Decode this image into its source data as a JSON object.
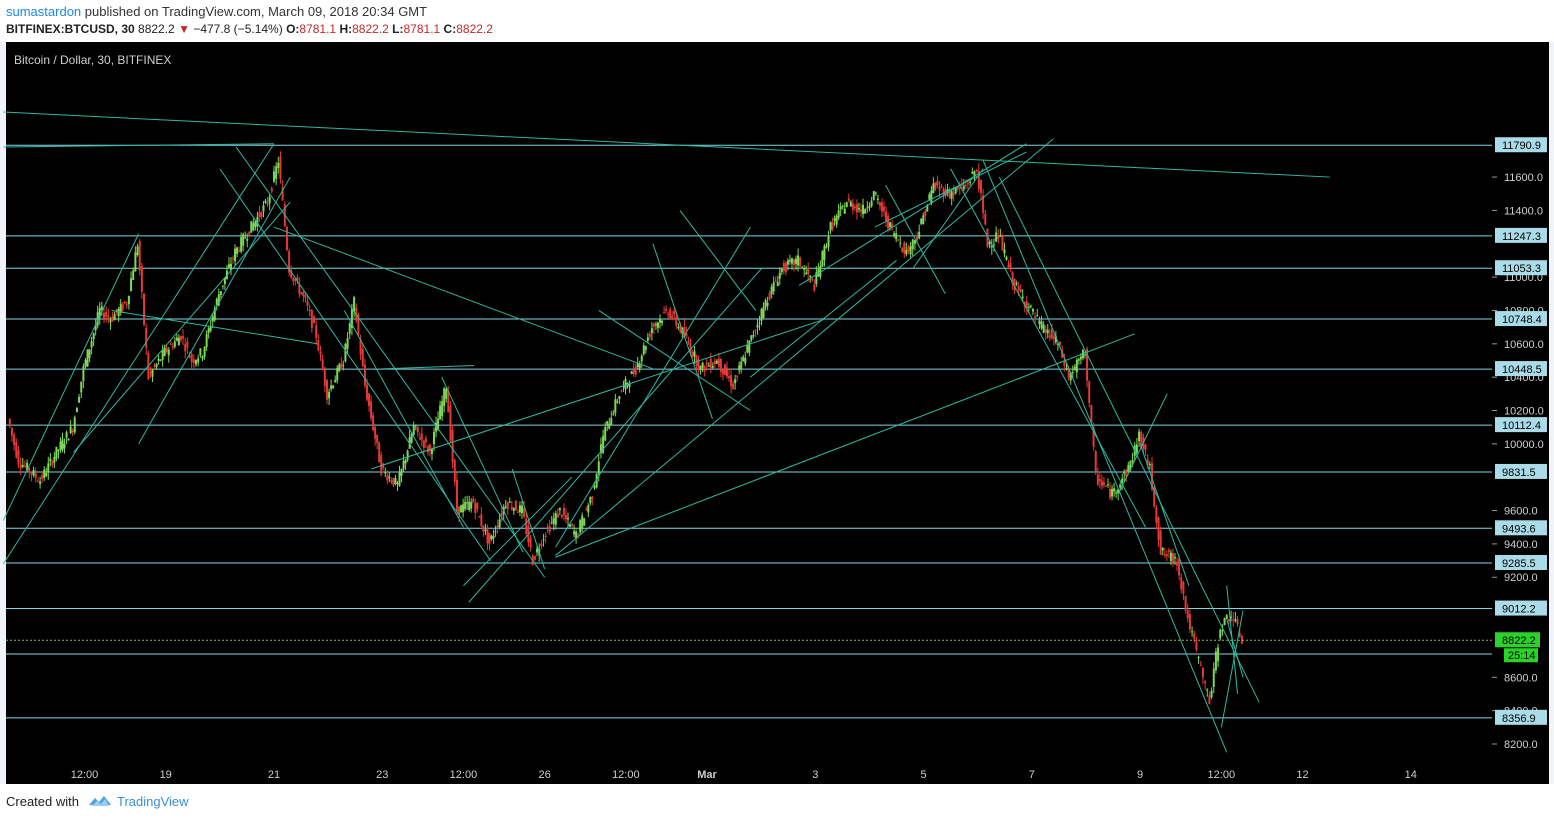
{
  "header": {
    "author": "sumastardon",
    "published_text": "published on TradingView.com, March 09, 2018 20:34 GMT",
    "symbol": "BITFINEX:BTCUSD, 30",
    "last": "8822.2",
    "change": "−477.8 (−5.14%)",
    "o_label": "O:",
    "o": "8781.1",
    "h_label": "H:",
    "h": "8822.2",
    "l_label": "L:",
    "l": "8781.1",
    "c_label": "C:",
    "c": "8822.2"
  },
  "footer": {
    "created_with": "Created with",
    "brand": "TradingView"
  },
  "colors": {
    "background": "#000000",
    "level_line": "#7fd6e6",
    "trend_line": "#2fb8a0",
    "up_candle": "#7ed957",
    "down_candle": "#e53935",
    "price_line": "#8bc34a",
    "level_label_bg": "#a9dbe8",
    "current_price_bg": "#29d329"
  },
  "chart_data": {
    "type": "candlestick",
    "title": "Bitcoin / Dollar, 30, BITFINEX",
    "ylim": [
      8100,
      11950
    ],
    "y_ticks": [
      8200,
      8400,
      8600,
      9200,
      9400,
      9600,
      10000,
      10200,
      10400,
      10600,
      10800,
      11000,
      11400,
      11600
    ],
    "x_tick_labels": [
      "12:00",
      "19",
      "21",
      "23",
      "12:00",
      "26",
      "12:00",
      "Mar",
      "3",
      "5",
      "7",
      "9",
      "12:00",
      "12",
      "14"
    ],
    "x_tick_times_days": [
      17.5,
      19,
      21,
      23,
      24.5,
      26,
      27.5,
      29,
      31,
      33,
      35,
      37,
      38.5,
      40,
      42
    ],
    "levels": [
      11790.9,
      11247.3,
      11053.3,
      10748.4,
      10448.5,
      10112.4,
      9831.5,
      9493.6,
      9285.5,
      9012.2,
      8740,
      8356.9
    ],
    "level_labels": [
      "11790.9",
      "11247.3",
      "11053.3",
      "10748.4",
      "10448.5",
      "10112.4",
      "9831.5",
      "9493.6",
      "9285.5",
      "9012.2",
      "",
      "8356.9"
    ],
    "current_price": 8822.2,
    "current_price_label": "8822.2",
    "countdown": "25:14",
    "price_path": [
      [
        16.1,
        10150
      ],
      [
        16.3,
        9900
      ],
      [
        16.7,
        9780
      ],
      [
        17.0,
        9950
      ],
      [
        17.3,
        10100
      ],
      [
        17.5,
        10450
      ],
      [
        17.8,
        10800
      ],
      [
        18.0,
        10750
      ],
      [
        18.3,
        10850
      ],
      [
        18.5,
        11200
      ],
      [
        18.7,
        10400
      ],
      [
        19.0,
        10550
      ],
      [
        19.3,
        10650
      ],
      [
        19.5,
        10500
      ],
      [
        19.7,
        10550
      ],
      [
        20.0,
        10900
      ],
      [
        20.3,
        11150
      ],
      [
        20.6,
        11300
      ],
      [
        20.9,
        11450
      ],
      [
        21.1,
        11700
      ],
      [
        21.3,
        11050
      ],
      [
        21.6,
        10850
      ],
      [
        21.8,
        10650
      ],
      [
        22.0,
        10300
      ],
      [
        22.3,
        10500
      ],
      [
        22.5,
        10850
      ],
      [
        22.7,
        10350
      ],
      [
        23.0,
        9850
      ],
      [
        23.3,
        9750
      ],
      [
        23.6,
        10100
      ],
      [
        23.9,
        9950
      ],
      [
        24.2,
        10350
      ],
      [
        24.4,
        9600
      ],
      [
        24.7,
        9650
      ],
      [
        25.0,
        9400
      ],
      [
        25.3,
        9650
      ],
      [
        25.6,
        9600
      ],
      [
        25.8,
        9300
      ],
      [
        26.0,
        9450
      ],
      [
        26.3,
        9600
      ],
      [
        26.6,
        9450
      ],
      [
        26.9,
        9700
      ],
      [
        27.1,
        10050
      ],
      [
        27.4,
        10300
      ],
      [
        27.7,
        10450
      ],
      [
        28.0,
        10700
      ],
      [
        28.3,
        10800
      ],
      [
        28.6,
        10650
      ],
      [
        28.9,
        10450
      ],
      [
        29.2,
        10500
      ],
      [
        29.5,
        10350
      ],
      [
        29.8,
        10600
      ],
      [
        30.1,
        10850
      ],
      [
        30.4,
        11050
      ],
      [
        30.7,
        11100
      ],
      [
        31.0,
        10950
      ],
      [
        31.3,
        11300
      ],
      [
        31.6,
        11450
      ],
      [
        31.9,
        11400
      ],
      [
        32.1,
        11500
      ],
      [
        32.4,
        11300
      ],
      [
        32.7,
        11150
      ],
      [
        32.9,
        11250
      ],
      [
        33.2,
        11550
      ],
      [
        33.5,
        11500
      ],
      [
        33.8,
        11550
      ],
      [
        34.0,
        11650
      ],
      [
        34.2,
        11200
      ],
      [
        34.4,
        11250
      ],
      [
        34.7,
        10950
      ],
      [
        35.0,
        10800
      ],
      [
        35.2,
        10700
      ],
      [
        35.5,
        10600
      ],
      [
        35.7,
        10400
      ],
      [
        36.0,
        10550
      ],
      [
        36.2,
        9800
      ],
      [
        36.5,
        9700
      ],
      [
        36.8,
        9850
      ],
      [
        37.0,
        10050
      ],
      [
        37.2,
        9850
      ],
      [
        37.4,
        9350
      ],
      [
        37.7,
        9300
      ],
      [
        37.9,
        8950
      ],
      [
        38.1,
        8700
      ],
      [
        38.3,
        8450
      ],
      [
        38.5,
        8900
      ],
      [
        38.7,
        8980
      ],
      [
        38.9,
        8822.2
      ]
    ],
    "trend_lines": [
      [
        [
          16.0,
          11990
        ],
        [
          40.5,
          11600
        ]
      ],
      [
        [
          16.0,
          11780
        ],
        [
          21.0,
          11800
        ]
      ],
      [
        [
          16.0,
          9280
        ],
        [
          21.0,
          11800
        ]
      ],
      [
        [
          16.0,
          9540
        ],
        [
          18.5,
          11260
        ]
      ],
      [
        [
          17.3,
          9950
        ],
        [
          21.3,
          11450
        ]
      ],
      [
        [
          18.5,
          10000
        ],
        [
          21.3,
          11600
        ]
      ],
      [
        [
          18.0,
          10800
        ],
        [
          21.8,
          10600
        ]
      ],
      [
        [
          20.0,
          11650
        ],
        [
          25.0,
          9300
        ]
      ],
      [
        [
          20.3,
          11780
        ],
        [
          26.0,
          9200
        ]
      ],
      [
        [
          22.3,
          10800
        ],
        [
          24.5,
          9500
        ]
      ],
      [
        [
          21.0,
          11300
        ],
        [
          28.0,
          10450
        ]
      ],
      [
        [
          22.8,
          9850
        ],
        [
          31.2,
          10750
        ]
      ],
      [
        [
          23.0,
          10450
        ],
        [
          24.7,
          10470
        ]
      ],
      [
        [
          24.1,
          10400
        ],
        [
          25.6,
          9350
        ]
      ],
      [
        [
          24.6,
          9050
        ],
        [
          30.0,
          11050
        ]
      ],
      [
        [
          24.5,
          9150
        ],
        [
          26.5,
          9800
        ]
      ],
      [
        [
          25.4,
          9850
        ],
        [
          26.0,
          9250
        ]
      ],
      [
        [
          26.2,
          9380
        ],
        [
          29.8,
          11300
        ]
      ],
      [
        [
          26.2,
          9330
        ],
        [
          35.4,
          11830
        ]
      ],
      [
        [
          26.2,
          9320
        ],
        [
          36.9,
          10660
        ]
      ],
      [
        [
          27.0,
          10800
        ],
        [
          29.8,
          10200
        ]
      ],
      [
        [
          28.0,
          11200
        ],
        [
          29.1,
          10150
        ]
      ],
      [
        [
          28.5,
          11400
        ],
        [
          29.9,
          10800
        ]
      ],
      [
        [
          29.8,
          10400
        ],
        [
          32.5,
          11100
        ]
      ],
      [
        [
          30.7,
          10950
        ],
        [
          34.9,
          11800
        ]
      ],
      [
        [
          32.3,
          11550
        ],
        [
          33.4,
          10900
        ]
      ],
      [
        [
          32.1,
          11300
        ],
        [
          34.9,
          11750
        ]
      ],
      [
        [
          32.8,
          11050
        ],
        [
          34.1,
          11650
        ]
      ],
      [
        [
          34.1,
          11700
        ],
        [
          38.6,
          8150
        ]
      ],
      [
        [
          33.5,
          11650
        ],
        [
          37.1,
          9500
        ]
      ],
      [
        [
          34.4,
          11600
        ],
        [
          39.2,
          8450
        ]
      ],
      [
        [
          36.6,
          9700
        ],
        [
          37.5,
          10300
        ]
      ],
      [
        [
          37.0,
          10000
        ],
        [
          37.9,
          9150
        ]
      ],
      [
        [
          38.5,
          8300
        ],
        [
          38.9,
          9000
        ]
      ],
      [
        [
          38.6,
          9150
        ],
        [
          38.8,
          8500
        ]
      ],
      [
        [
          38.6,
          8950
        ],
        [
          38.9,
          8600
        ]
      ]
    ]
  }
}
